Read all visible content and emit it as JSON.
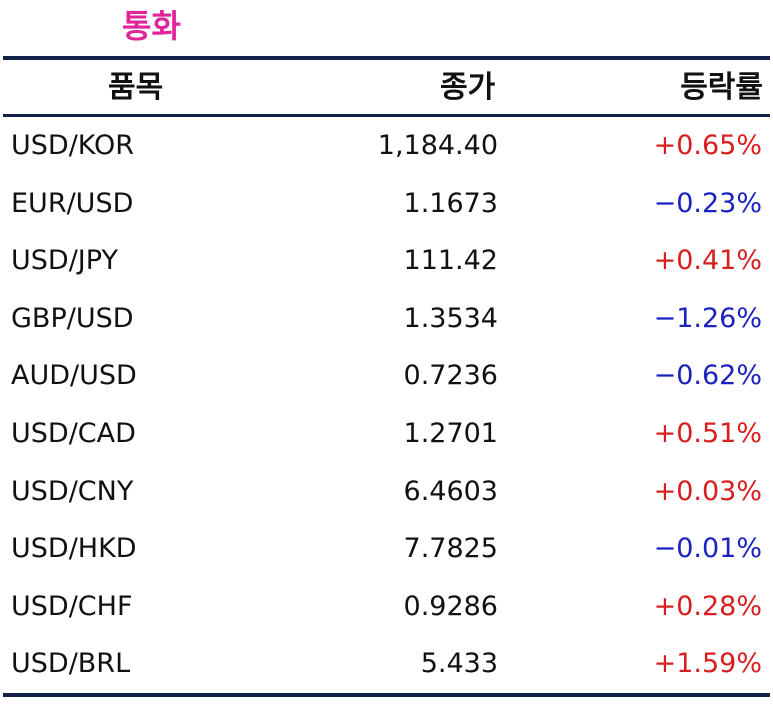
{
  "title": "통화",
  "headers": {
    "name": "품목",
    "close": "종가",
    "change": "등락률"
  },
  "rows": [
    {
      "name": "USD/KOR",
      "close": "1,184.40",
      "change": "+0.65%",
      "dir": "up"
    },
    {
      "name": "EUR/USD",
      "close": "1.1673",
      "change": "−0.23%",
      "dir": "down"
    },
    {
      "name": "USD/JPY",
      "close": "111.42",
      "change": "+0.41%",
      "dir": "up"
    },
    {
      "name": "GBP/USD",
      "close": "1.3534",
      "change": "−1.26%",
      "dir": "down"
    },
    {
      "name": "AUD/USD",
      "close": "0.7236",
      "change": "−0.62%",
      "dir": "down"
    },
    {
      "name": "USD/CAD",
      "close": "1.2701",
      "change": "+0.51%",
      "dir": "up"
    },
    {
      "name": "USD/CNY",
      "close": "6.4603",
      "change": "+0.03%",
      "dir": "up"
    },
    {
      "name": "USD/HKD",
      "close": "7.7825",
      "change": "−0.01%",
      "dir": "down"
    },
    {
      "name": "USD/CHF",
      "close": "0.9286",
      "change": "+0.28%",
      "dir": "up"
    },
    {
      "name": "USD/BRL",
      "close": "5.433",
      "change": "+1.59%",
      "dir": "up"
    }
  ],
  "colors": {
    "title": "#e0249a",
    "rule": "#13224b",
    "up": "#d81e1e",
    "down": "#1c22c0"
  }
}
